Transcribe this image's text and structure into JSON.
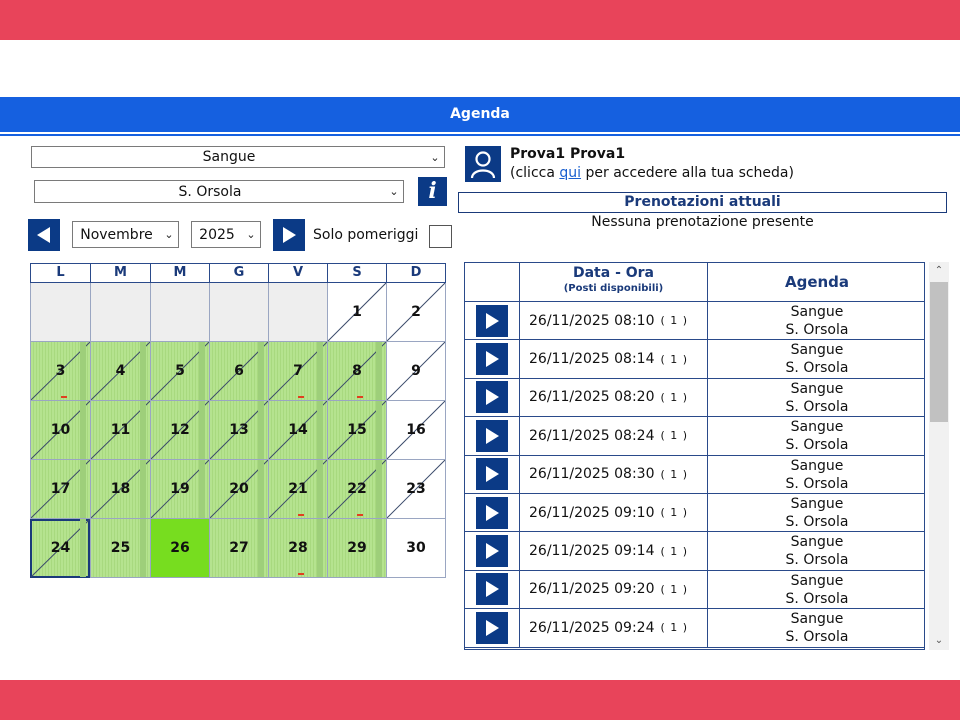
{
  "colors": {
    "brand_red": "#e8445a",
    "header_blue": "#1560e0",
    "nav_blue": "#0b3a86",
    "cal_green": "#b5e38f",
    "cal_selected": "#77dd1f"
  },
  "header": {
    "title": "Agenda"
  },
  "filters": {
    "service": "Sangue",
    "location": "S. Orsola",
    "month": "Novembre",
    "year": "2025",
    "solo_pomeriggi_label": "Solo pomeriggi",
    "solo_pomeriggi_checked": false
  },
  "calendar": {
    "weekdays": [
      "L",
      "M",
      "M",
      "G",
      "V",
      "S",
      "D"
    ],
    "cells": [
      {
        "day": "",
        "state": "empty"
      },
      {
        "day": "",
        "state": "empty"
      },
      {
        "day": "",
        "state": "empty"
      },
      {
        "day": "",
        "state": "empty"
      },
      {
        "day": "",
        "state": "empty"
      },
      {
        "day": "1",
        "state": "white",
        "struck": true
      },
      {
        "day": "2",
        "state": "white",
        "struck": true
      },
      {
        "day": "3",
        "state": "green",
        "struck": true,
        "mark": true
      },
      {
        "day": "4",
        "state": "green",
        "struck": true
      },
      {
        "day": "5",
        "state": "green",
        "struck": true
      },
      {
        "day": "6",
        "state": "green",
        "struck": true
      },
      {
        "day": "7",
        "state": "green",
        "struck": true,
        "mark": true
      },
      {
        "day": "8",
        "state": "green",
        "struck": true,
        "mark": true
      },
      {
        "day": "9",
        "state": "white",
        "struck": true
      },
      {
        "day": "10",
        "state": "green",
        "struck": true
      },
      {
        "day": "11",
        "state": "green",
        "struck": true
      },
      {
        "day": "12",
        "state": "green",
        "struck": true
      },
      {
        "day": "13",
        "state": "green",
        "struck": true
      },
      {
        "day": "14",
        "state": "green",
        "struck": true
      },
      {
        "day": "15",
        "state": "green",
        "struck": true
      },
      {
        "day": "16",
        "state": "white",
        "struck": true
      },
      {
        "day": "17",
        "state": "green",
        "struck": true
      },
      {
        "day": "18",
        "state": "green",
        "struck": true
      },
      {
        "day": "19",
        "state": "green",
        "struck": true
      },
      {
        "day": "20",
        "state": "green",
        "struck": true
      },
      {
        "day": "21",
        "state": "green",
        "struck": true,
        "mark": true
      },
      {
        "day": "22",
        "state": "green",
        "struck": true,
        "mark": true
      },
      {
        "day": "23",
        "state": "white",
        "struck": true
      },
      {
        "day": "24",
        "state": "green",
        "struck": true,
        "today": true
      },
      {
        "day": "25",
        "state": "green",
        "struck": false
      },
      {
        "day": "26",
        "state": "selected",
        "struck": false
      },
      {
        "day": "27",
        "state": "green",
        "struck": false
      },
      {
        "day": "28",
        "state": "green",
        "struck": false,
        "mark": true
      },
      {
        "day": "29",
        "state": "green",
        "struck": false
      },
      {
        "day": "30",
        "state": "white",
        "struck": false
      }
    ]
  },
  "user": {
    "name": "Prova1 Prova1",
    "hint_before": "(clicca ",
    "hint_link": "qui",
    "hint_after": " per accedere alla tua scheda)"
  },
  "prenotazioni": {
    "title": "Prenotazioni attuali",
    "empty_text": "Nessuna prenotazione presente"
  },
  "slots": {
    "header_date": "Data - Ora",
    "header_date_sub": "(Posti disponibili)",
    "header_agenda": "Agenda",
    "rows": [
      {
        "datetime": "26/11/2025 08:10",
        "count": "( 1 )",
        "agenda": "Sangue",
        "location": "S. Orsola"
      },
      {
        "datetime": "26/11/2025 08:14",
        "count": "( 1 )",
        "agenda": "Sangue",
        "location": "S. Orsola"
      },
      {
        "datetime": "26/11/2025 08:20",
        "count": "( 1 )",
        "agenda": "Sangue",
        "location": "S. Orsola"
      },
      {
        "datetime": "26/11/2025 08:24",
        "count": "( 1 )",
        "agenda": "Sangue",
        "location": "S. Orsola"
      },
      {
        "datetime": "26/11/2025 08:30",
        "count": "( 1 )",
        "agenda": "Sangue",
        "location": "S. Orsola"
      },
      {
        "datetime": "26/11/2025 09:10",
        "count": "( 1 )",
        "agenda": "Sangue",
        "location": "S. Orsola"
      },
      {
        "datetime": "26/11/2025 09:14",
        "count": "( 1 )",
        "agenda": "Sangue",
        "location": "S. Orsola"
      },
      {
        "datetime": "26/11/2025 09:20",
        "count": "( 1 )",
        "agenda": "Sangue",
        "location": "S. Orsola"
      },
      {
        "datetime": "26/11/2025 09:24",
        "count": "( 1 )",
        "agenda": "Sangue",
        "location": "S. Orsola"
      }
    ]
  },
  "icons": {
    "prev": "chevron-left-icon",
    "next": "chevron-right-icon",
    "info": "info-icon",
    "user": "user-icon",
    "slot_go": "play-icon"
  }
}
